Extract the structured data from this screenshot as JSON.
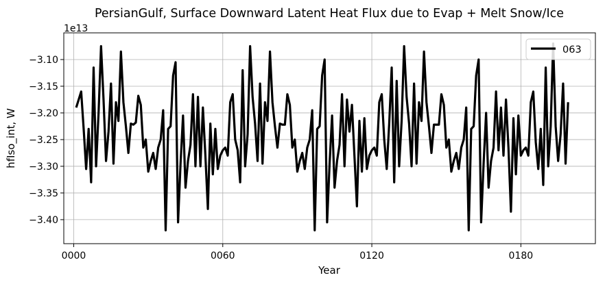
{
  "chart_data": {
    "type": "line",
    "title": "PersianGulf, Surface Downward Latent Heat Flux due to Evap + Melt Snow/Ice",
    "xlabel": "Year",
    "ylabel": "hfIso_int, W",
    "offset_text": "1e13",
    "xlim": [
      -4,
      210
    ],
    "ylim": [
      -3.445,
      -3.05
    ],
    "x_ticks": [
      {
        "value": 0,
        "label": "0000"
      },
      {
        "value": 60,
        "label": "0060"
      },
      {
        "value": 120,
        "label": "0120"
      },
      {
        "value": 180,
        "label": "0180"
      }
    ],
    "y_ticks": [
      {
        "value": -3.4,
        "label": "−3.40"
      },
      {
        "value": -3.35,
        "label": "−3.35"
      },
      {
        "value": -3.3,
        "label": "−3.30"
      },
      {
        "value": -3.25,
        "label": "−3.25"
      },
      {
        "value": -3.2,
        "label": "−3.20"
      },
      {
        "value": -3.15,
        "label": "−3.15"
      },
      {
        "value": -3.1,
        "label": "−3.10"
      }
    ],
    "grid": true,
    "legend_position": "top-right",
    "series": [
      {
        "name": "063",
        "color": "#000000",
        "x_start": 1,
        "x_step": 1,
        "values": [
          -3.19,
          -3.175,
          -3.16,
          -3.23,
          -3.305,
          -3.23,
          -3.33,
          -3.115,
          -3.3,
          -3.2,
          -3.075,
          -3.175,
          -3.29,
          -3.235,
          -3.145,
          -3.295,
          -3.18,
          -3.215,
          -3.085,
          -3.18,
          -3.225,
          -3.275,
          -3.22,
          -3.222,
          -3.218,
          -3.168,
          -3.185,
          -3.265,
          -3.25,
          -3.31,
          -3.29,
          -3.275,
          -3.305,
          -3.265,
          -3.25,
          -3.195,
          -3.42,
          -3.23,
          -3.225,
          -3.13,
          -3.105,
          -3.405,
          -3.295,
          -3.205,
          -3.34,
          -3.29,
          -3.26,
          -3.165,
          -3.3,
          -3.17,
          -3.3,
          -3.19,
          -3.28,
          -3.38,
          -3.22,
          -3.315,
          -3.23,
          -3.305,
          -3.28,
          -3.27,
          -3.265,
          -3.28,
          -3.18,
          -3.165,
          -3.25,
          -3.27,
          -3.33,
          -3.12,
          -3.3,
          -3.24,
          -3.075,
          -3.17,
          -3.22,
          -3.29,
          -3.145,
          -3.295,
          -3.18,
          -3.215,
          -3.085,
          -3.18,
          -3.225,
          -3.265,
          -3.22,
          -3.222,
          -3.222,
          -3.165,
          -3.185,
          -3.265,
          -3.25,
          -3.31,
          -3.29,
          -3.275,
          -3.305,
          -3.265,
          -3.25,
          -3.195,
          -3.42,
          -3.23,
          -3.225,
          -3.13,
          -3.1,
          -3.405,
          -3.295,
          -3.205,
          -3.34,
          -3.29,
          -3.26,
          -3.165,
          -3.3,
          -3.175,
          -3.235,
          -3.185,
          -3.28,
          -3.375,
          -3.215,
          -3.31,
          -3.21,
          -3.305,
          -3.28,
          -3.27,
          -3.265,
          -3.28,
          -3.18,
          -3.165,
          -3.25,
          -3.305,
          -3.22,
          -3.115,
          -3.33,
          -3.14,
          -3.3,
          -3.215,
          -3.075,
          -3.17,
          -3.22,
          -3.3,
          -3.145,
          -3.295,
          -3.18,
          -3.215,
          -3.085,
          -3.18,
          -3.225,
          -3.275,
          -3.222,
          -3.222,
          -3.222,
          -3.165,
          -3.185,
          -3.265,
          -3.25,
          -3.31,
          -3.29,
          -3.275,
          -3.305,
          -3.265,
          -3.25,
          -3.19,
          -3.42,
          -3.23,
          -3.225,
          -3.13,
          -3.1,
          -3.405,
          -3.295,
          -3.2,
          -3.34,
          -3.29,
          -3.265,
          -3.16,
          -3.27,
          -3.19,
          -3.28,
          -3.175,
          -3.265,
          -3.385,
          -3.21,
          -3.315,
          -3.205,
          -3.28,
          -3.27,
          -3.265,
          -3.28,
          -3.18,
          -3.16,
          -3.255,
          -3.305,
          -3.23,
          -3.335,
          -3.115,
          -3.3,
          -3.225,
          -3.07,
          -3.225,
          -3.29,
          -3.24,
          -3.145,
          -3.295,
          -3.18
        ]
      }
    ]
  }
}
